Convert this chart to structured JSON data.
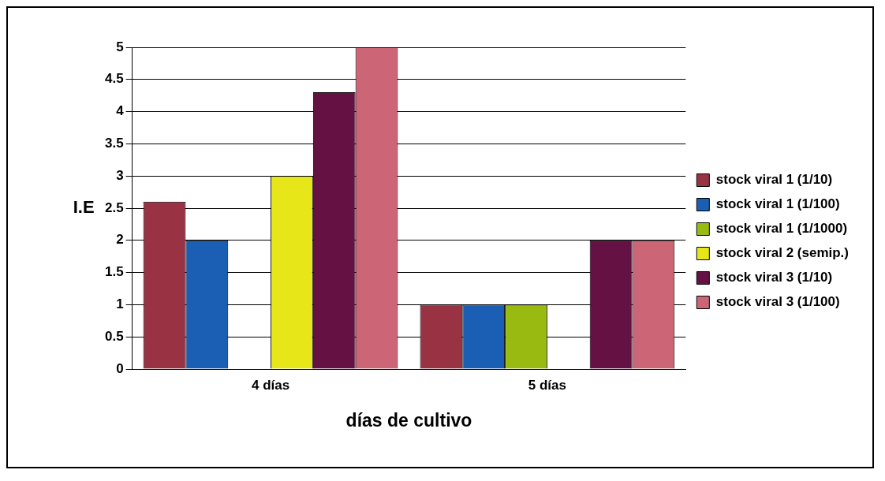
{
  "chart_data": {
    "type": "bar",
    "xlabel": "días de cultivo",
    "ylabel": "I.E",
    "categories": [
      "4 días",
      "5 días"
    ],
    "series": [
      {
        "name": "stock viral 1 (1/10)",
        "color": "#993344",
        "values": [
          2.6,
          1
        ]
      },
      {
        "name": "stock viral 1 (1/100)",
        "color": "#1a5fb4",
        "values": [
          2,
          1
        ]
      },
      {
        "name": "stock viral 1 (1/1000)",
        "color": "#99bb11",
        "values": [
          0,
          1
        ]
      },
      {
        "name": "stock viral 2 (semip.)",
        "color": "#e6e619",
        "values": [
          3,
          0
        ]
      },
      {
        "name": "stock viral 3 (1/10)",
        "color": "#661144",
        "values": [
          4.3,
          2
        ]
      },
      {
        "name": "stock viral 3 (1/100)",
        "color": "#cc6677",
        "values": [
          5,
          2
        ]
      }
    ],
    "ylim": [
      0,
      5
    ],
    "yticks": [
      0,
      0.5,
      1,
      1.5,
      2,
      2.5,
      3,
      3.5,
      4,
      4.5,
      5
    ],
    "grid": "y",
    "legend": "right"
  }
}
